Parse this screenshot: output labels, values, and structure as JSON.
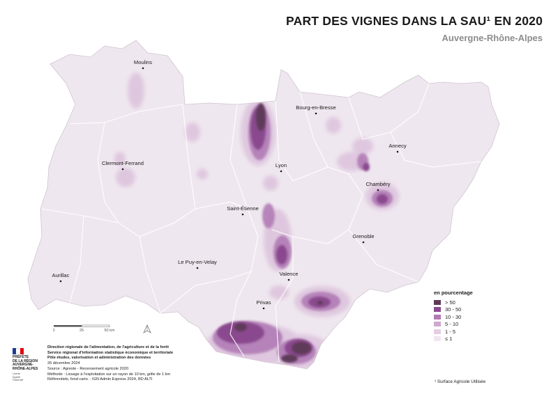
{
  "title": "PART DES VIGNES DANS LA SAU¹ EN 2020",
  "subtitle": "Auvergne-Rhône-Alpes",
  "cities": [
    {
      "name": "Moulins"
    },
    {
      "name": "Bourg-en-Bresse"
    },
    {
      "name": "Annecy"
    },
    {
      "name": "Clermont-Ferrand"
    },
    {
      "name": "Lyon"
    },
    {
      "name": "Chambéry"
    },
    {
      "name": "Saint-Étienne"
    },
    {
      "name": "Grenoble"
    },
    {
      "name": "Le Puy-en-Velay"
    },
    {
      "name": "Valence"
    },
    {
      "name": "Aurillac"
    },
    {
      "name": "Privas"
    }
  ],
  "legend": {
    "title": "en pourcentage",
    "classes": [
      {
        "label": "> 50",
        "color": "#5e3a5a"
      },
      {
        "label": "30 - 50",
        "color": "#8a4a8e"
      },
      {
        "label": "10 - 30",
        "color": "#b17bb5"
      },
      {
        "label": "5 - 10",
        "color": "#cfa8d0"
      },
      {
        "label": "1 - 5",
        "color": "#e4cfe4"
      },
      {
        "label": "≤ 1",
        "color": "#f0e6f0"
      }
    ]
  },
  "scale": {
    "labels": [
      "0",
      "25",
      "50 km"
    ]
  },
  "credits": {
    "line1": "Direction régionale de l'alimentation, de l'agriculture et de la forêt",
    "line2": "Service régional d'information statistique économique et territoriale",
    "line3": "Pôle études, valorisation et administration des données",
    "date": "26 décembre 2024",
    "source": "Source : Agreste - Recensement agricole 2020",
    "method": "Méthode : Lissage à l'exploitation sur un rayon de 10 km, grille de 1 km",
    "refs": "Référentiels, fond carto. : IGN Admin Express 2024, BD ALTI"
  },
  "logo": {
    "line1": "PRÉFÈTE",
    "line2": "DE LA RÉGION",
    "line3": "AUVERGNE-",
    "line4": "RHÔNE-ALPES",
    "motto1": "Liberté",
    "motto2": "Égalité",
    "motto3": "Fraternité"
  },
  "footnote": "¹ Surface Agricole Utilisée",
  "colors": {
    "base": "#efe7ef",
    "boundary": "#ffffff"
  }
}
